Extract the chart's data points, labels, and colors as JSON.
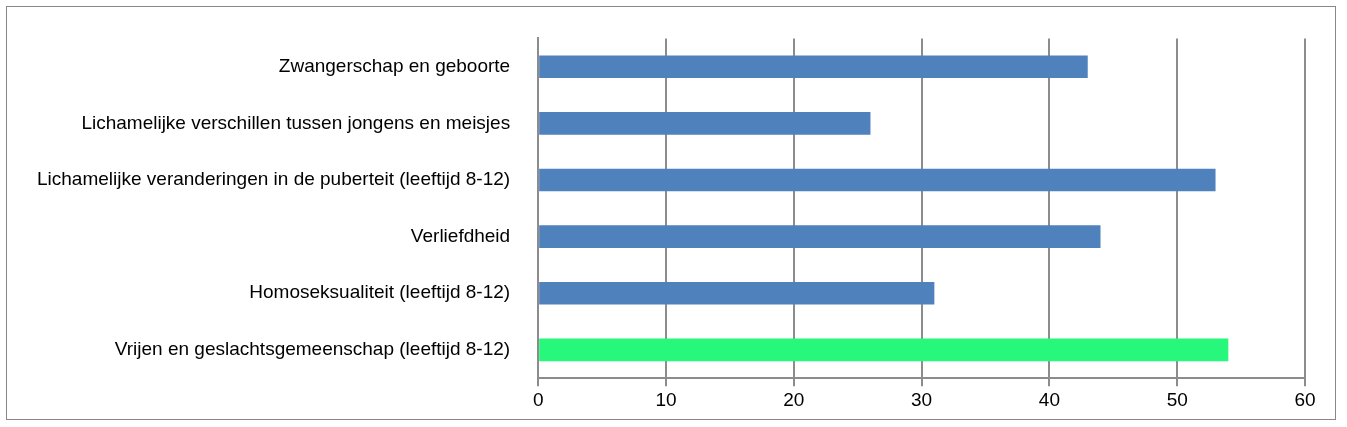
{
  "chart_data": {
    "type": "bar",
    "orientation": "horizontal",
    "categories": [
      "Zwangerschap en geboorte",
      "Lichamelijke verschillen tussen jongens en meisjes",
      "Lichamelijke veranderingen in de puberteit (leeftijd 8-12)",
      "Verliefdheid",
      "Homoseksualiteit (leeftijd 8-12)",
      "Vrijen en geslachtsgemeenschap (leeftijd 8-12)"
    ],
    "values": [
      43,
      26,
      53,
      44,
      31,
      54
    ],
    "colors": [
      "#4f81bd",
      "#4f81bd",
      "#4f81bd",
      "#4f81bd",
      "#4f81bd",
      "#27f77a"
    ],
    "xlim": [
      0,
      60
    ],
    "xticks": [
      0,
      10,
      20,
      30,
      40,
      50,
      60
    ],
    "grid": "x",
    "legend": false
  }
}
